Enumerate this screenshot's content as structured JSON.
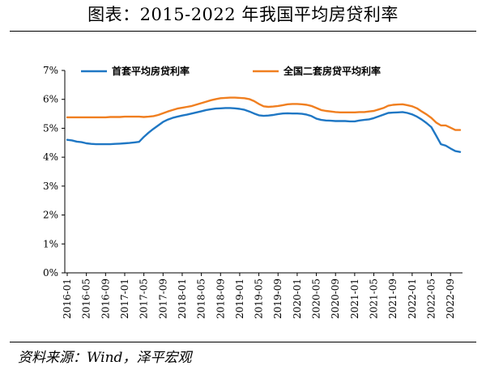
{
  "header": {
    "title": "图表：2015-2022 年我国平均房贷利率"
  },
  "footer": {
    "source": "资料来源：Wind，泽平宏观"
  },
  "colors": {
    "series_primary": "#1f77c4",
    "series_secondary": "#f07f20",
    "axis": "#000000"
  },
  "chart_data": {
    "type": "line",
    "title": "",
    "xlabel": "",
    "ylabel": "",
    "ylim": [
      0,
      7
    ],
    "yticks": [
      "0%",
      "1%",
      "2%",
      "3%",
      "4%",
      "5%",
      "6%",
      "7%"
    ],
    "grid": false,
    "legend_position": "top",
    "x_tick_labels": [
      "2016-01",
      "2016-05",
      "2016-09",
      "2017-01",
      "2017-05",
      "2017-09",
      "2018-01",
      "2018-05",
      "2018-09",
      "2019-01",
      "2019-05",
      "2019-09",
      "2020-01",
      "2020-05",
      "2020-09",
      "2021-01",
      "2021-05",
      "2021-09",
      "2022-01",
      "2022-05",
      "2022-09"
    ],
    "x": [
      "2016-01",
      "2016-02",
      "2016-03",
      "2016-04",
      "2016-05",
      "2016-06",
      "2016-07",
      "2016-08",
      "2016-09",
      "2016-10",
      "2016-11",
      "2016-12",
      "2017-01",
      "2017-02",
      "2017-03",
      "2017-04",
      "2017-05",
      "2017-06",
      "2017-07",
      "2017-08",
      "2017-09",
      "2017-10",
      "2017-11",
      "2017-12",
      "2018-01",
      "2018-02",
      "2018-03",
      "2018-04",
      "2018-05",
      "2018-06",
      "2018-07",
      "2018-08",
      "2018-09",
      "2018-10",
      "2018-11",
      "2018-12",
      "2019-01",
      "2019-02",
      "2019-03",
      "2019-04",
      "2019-05",
      "2019-06",
      "2019-07",
      "2019-08",
      "2019-09",
      "2019-10",
      "2019-11",
      "2019-12",
      "2020-01",
      "2020-02",
      "2020-03",
      "2020-04",
      "2020-05",
      "2020-06",
      "2020-07",
      "2020-08",
      "2020-09",
      "2020-10",
      "2020-11",
      "2020-12",
      "2021-01",
      "2021-02",
      "2021-03",
      "2021-04",
      "2021-05",
      "2021-06",
      "2021-07",
      "2021-08",
      "2021-09",
      "2021-10",
      "2021-11",
      "2021-12",
      "2022-01",
      "2022-02",
      "2022-03",
      "2022-04",
      "2022-05",
      "2022-06",
      "2022-07",
      "2022-08",
      "2022-09",
      "2022-10",
      "2022-11"
    ],
    "series": [
      {
        "name": "首套平均房贷利率",
        "values": [
          4.6,
          4.58,
          4.54,
          4.52,
          4.48,
          4.46,
          4.45,
          4.45,
          4.45,
          4.45,
          4.46,
          4.47,
          4.48,
          4.49,
          4.51,
          4.53,
          4.7,
          4.85,
          4.98,
          5.1,
          5.22,
          5.3,
          5.36,
          5.4,
          5.44,
          5.47,
          5.51,
          5.55,
          5.59,
          5.63,
          5.66,
          5.68,
          5.69,
          5.7,
          5.7,
          5.69,
          5.67,
          5.64,
          5.58,
          5.51,
          5.45,
          5.43,
          5.44,
          5.46,
          5.49,
          5.51,
          5.52,
          5.51,
          5.51,
          5.5,
          5.47,
          5.42,
          5.33,
          5.29,
          5.27,
          5.26,
          5.25,
          5.25,
          5.25,
          5.24,
          5.24,
          5.27,
          5.29,
          5.31,
          5.35,
          5.41,
          5.47,
          5.53,
          5.54,
          5.55,
          5.56,
          5.53,
          5.48,
          5.4,
          5.3,
          5.18,
          5.04,
          4.75,
          4.45,
          4.4,
          4.3,
          4.21,
          4.18
        ]
      },
      {
        "name": "全国二套房贷平均利率",
        "values": [
          5.38,
          5.38,
          5.38,
          5.38,
          5.38,
          5.38,
          5.38,
          5.38,
          5.38,
          5.39,
          5.39,
          5.39,
          5.4,
          5.4,
          5.4,
          5.4,
          5.39,
          5.4,
          5.42,
          5.46,
          5.52,
          5.58,
          5.63,
          5.68,
          5.71,
          5.74,
          5.77,
          5.82,
          5.87,
          5.92,
          5.97,
          6.01,
          6.04,
          6.05,
          6.06,
          6.06,
          6.05,
          6.04,
          6.01,
          5.94,
          5.84,
          5.76,
          5.74,
          5.75,
          5.77,
          5.8,
          5.83,
          5.84,
          5.84,
          5.83,
          5.81,
          5.77,
          5.7,
          5.63,
          5.6,
          5.58,
          5.56,
          5.55,
          5.55,
          5.55,
          5.55,
          5.56,
          5.56,
          5.58,
          5.6,
          5.65,
          5.7,
          5.78,
          5.81,
          5.82,
          5.83,
          5.8,
          5.76,
          5.69,
          5.58,
          5.48,
          5.36,
          5.2,
          5.1,
          5.1,
          5.02,
          4.94,
          4.94
        ]
      }
    ]
  }
}
